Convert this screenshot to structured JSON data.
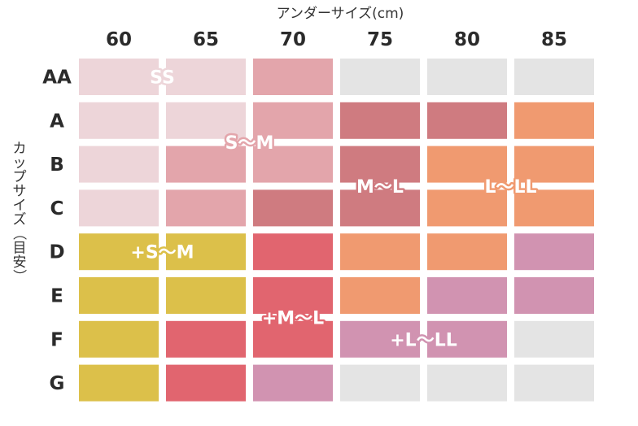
{
  "chart_data": {
    "type": "heatmap",
    "xlabel": "アンダーサイズ(cm)",
    "ylabel": "カップサイズ（目安）",
    "columns": [
      "60",
      "65",
      "70",
      "75",
      "80",
      "85"
    ],
    "rows": [
      "AA",
      "A",
      "B",
      "C",
      "D",
      "E",
      "F",
      "G"
    ],
    "cells": [
      [
        "SS",
        "SS",
        "S〜M",
        "",
        "",
        ""
      ],
      [
        "SS",
        "SS",
        "S〜M",
        "M〜L",
        "M〜L",
        "L〜LL"
      ],
      [
        "SS",
        "S〜M",
        "S〜M",
        "M〜L",
        "L〜LL",
        "L〜LL"
      ],
      [
        "SS",
        "S〜M",
        "M〜L",
        "M〜L",
        "L〜LL",
        "L〜LL"
      ],
      [
        "+S〜M",
        "+S〜M",
        "+M〜L",
        "L〜LL",
        "L〜LL",
        "+L〜LL"
      ],
      [
        "+S〜M",
        "+S〜M",
        "+M〜L",
        "L〜LL",
        "+L〜LL",
        "+L〜LL"
      ],
      [
        "+S〜M",
        "+M〜L",
        "+M〜L",
        "+L〜LL",
        "+L〜LL",
        ""
      ],
      [
        "+S〜M",
        "+M〜L",
        "+L〜LL",
        "",
        "",
        ""
      ]
    ],
    "zones": [
      {
        "label": "SS",
        "color": "#edd5d9"
      },
      {
        "label": "S〜M",
        "color": "#e3a5ab"
      },
      {
        "label": "M〜L",
        "color": "#cf7b80"
      },
      {
        "label": "L〜LL",
        "color": "#f09a70"
      },
      {
        "label": "+S〜M",
        "color": "#dcc04a"
      },
      {
        "label": "+M〜L",
        "color": "#e1656f"
      },
      {
        "label": "+L〜LL",
        "color": "#d193b1"
      }
    ],
    "empty_color": "#e4e4e4",
    "zone_label_anchors": [
      {
        "label": "SS",
        "row": 0.5,
        "col": 1.0
      },
      {
        "label": "S〜M",
        "row": 2.0,
        "col": 2.0
      },
      {
        "label": "M〜L",
        "row": 3.0,
        "col": 3.5
      },
      {
        "label": "L〜LL",
        "row": 3.0,
        "col": 5.0
      },
      {
        "label": "+S〜M",
        "row": 4.5,
        "col": 1.0
      },
      {
        "label": "+M〜L",
        "row": 6.0,
        "col": 2.5
      },
      {
        "label": "+L〜LL",
        "row": 6.5,
        "col": 4.0
      }
    ]
  }
}
